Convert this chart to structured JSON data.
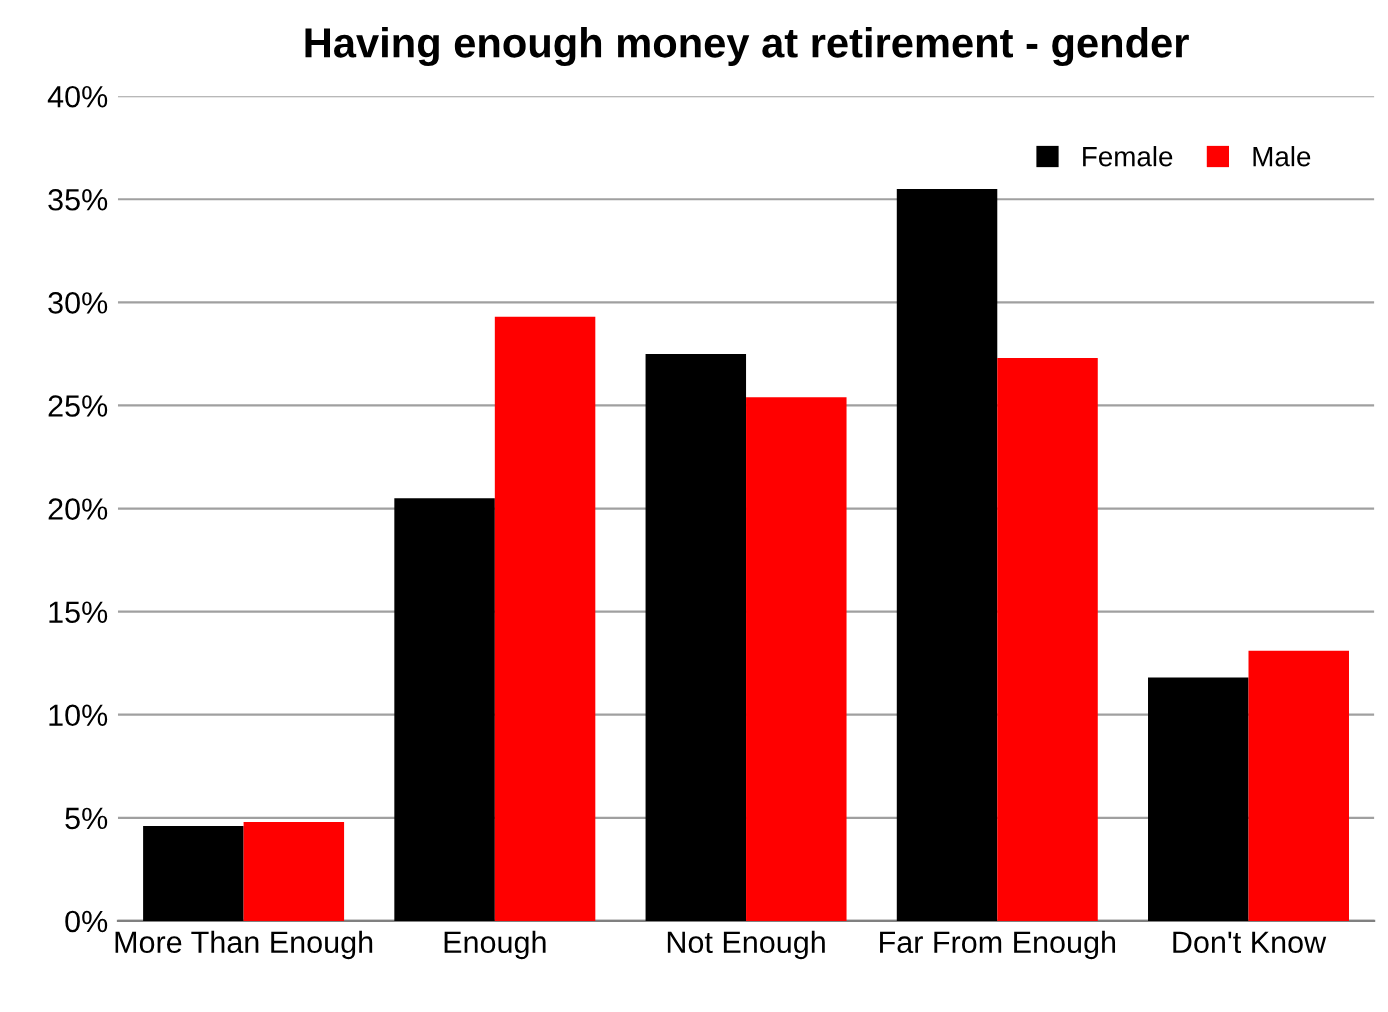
{
  "chart_data": {
    "type": "bar",
    "title": "Having enough money at retirement - gender",
    "categories": [
      "More Than Enough",
      "Enough",
      "Not Enough",
      "Far From Enough",
      "Don't Know"
    ],
    "series": [
      {
        "name": "Female",
        "color": "#000000",
        "values": [
          4.6,
          20.5,
          27.5,
          35.5,
          11.8
        ]
      },
      {
        "name": "Male",
        "color": "#ff0000",
        "values": [
          4.8,
          29.3,
          25.4,
          27.3,
          13.1
        ]
      }
    ],
    "ylim": [
      0,
      40
    ],
    "yticks": [
      {
        "value": 0,
        "label": "0%"
      },
      {
        "value": 5,
        "label": "5%"
      },
      {
        "value": 10,
        "label": "10%"
      },
      {
        "value": 15,
        "label": "15%"
      },
      {
        "value": 20,
        "label": "20%"
      },
      {
        "value": 25,
        "label": "25%"
      },
      {
        "value": 30,
        "label": "30%"
      },
      {
        "value": 35,
        "label": "35%"
      },
      {
        "value": 40,
        "label": "40%"
      }
    ],
    "grid": "y",
    "legend": "top right"
  }
}
